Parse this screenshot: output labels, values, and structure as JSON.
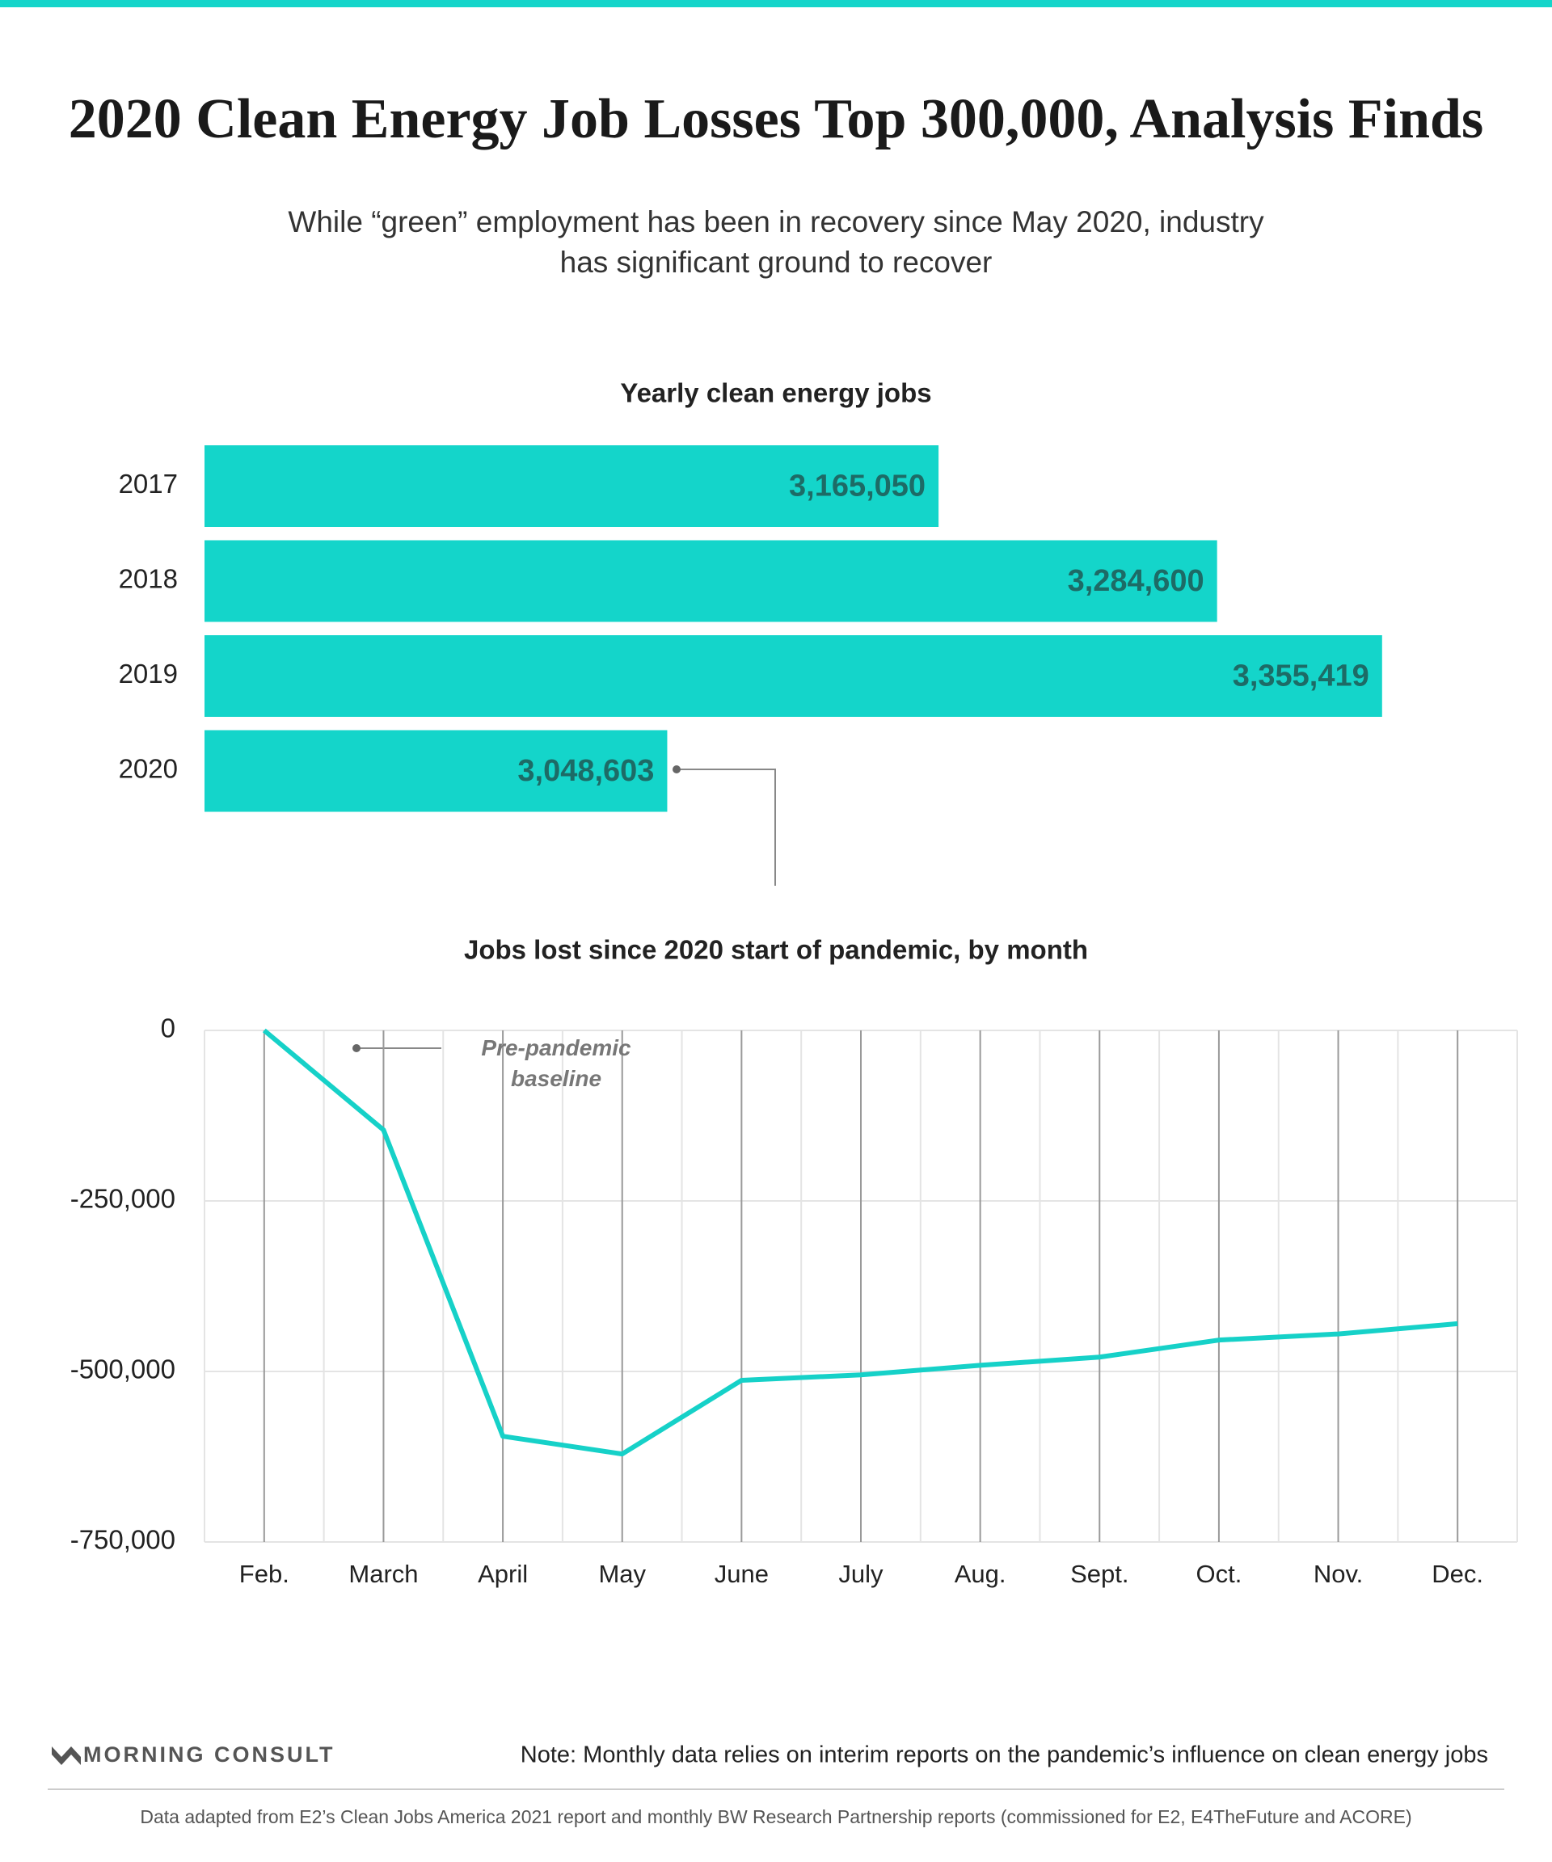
{
  "header": {
    "title": "2020 Clean Energy Job Losses Top 300,000, Analysis Finds",
    "subtitle": "While “green” employment has been in recovery since May 2020, industry has significant ground to recover"
  },
  "chart_data": [
    {
      "type": "bar",
      "orientation": "horizontal",
      "title": "Yearly clean energy jobs",
      "categories": [
        "2017",
        "2018",
        "2019",
        "2020"
      ],
      "values": [
        3165050,
        3284600,
        3355419,
        3048603
      ],
      "value_labels": [
        "3,165,050",
        "3,284,600",
        "3,355,419",
        "3,048,603"
      ],
      "xlim": [
        2850000,
        3360000
      ],
      "color": "#14d5ca",
      "label_color": "#1d6b66"
    },
    {
      "type": "line",
      "title": "Jobs lost since 2020 start of pandemic, by month",
      "categories": [
        "Feb.",
        "March",
        "April",
        "May",
        "June",
        "July",
        "Aug.",
        "Sept.",
        "Oct.",
        "Nov.",
        "Dec."
      ],
      "values": [
        0,
        -146000,
        -595000,
        -621000,
        -513000,
        -505000,
        -491000,
        -479000,
        -454000,
        -445000,
        -430000
      ],
      "ylim": [
        -750000,
        0
      ],
      "yticks": [
        0,
        {
          "value": -250000,
          "label": "-250,000"
        },
        {
          "value": -500000,
          "label": "-500,000"
        },
        {
          "value": -750000,
          "label": "-750,000"
        }
      ],
      "grid": true,
      "color": "#16d1c8",
      "annotation": "Pre-pandemic baseline"
    }
  ],
  "footer": {
    "logo": "MORNING CONSULT",
    "note": "Note: Monthly data relies on interim reports on the pandemic’s influence on clean energy jobs",
    "source": "Data adapted from E2’s Clean Jobs America 2021 report and monthly BW Research Partnership reports (commissioned for E2, E4TheFuture and ACORE)"
  }
}
